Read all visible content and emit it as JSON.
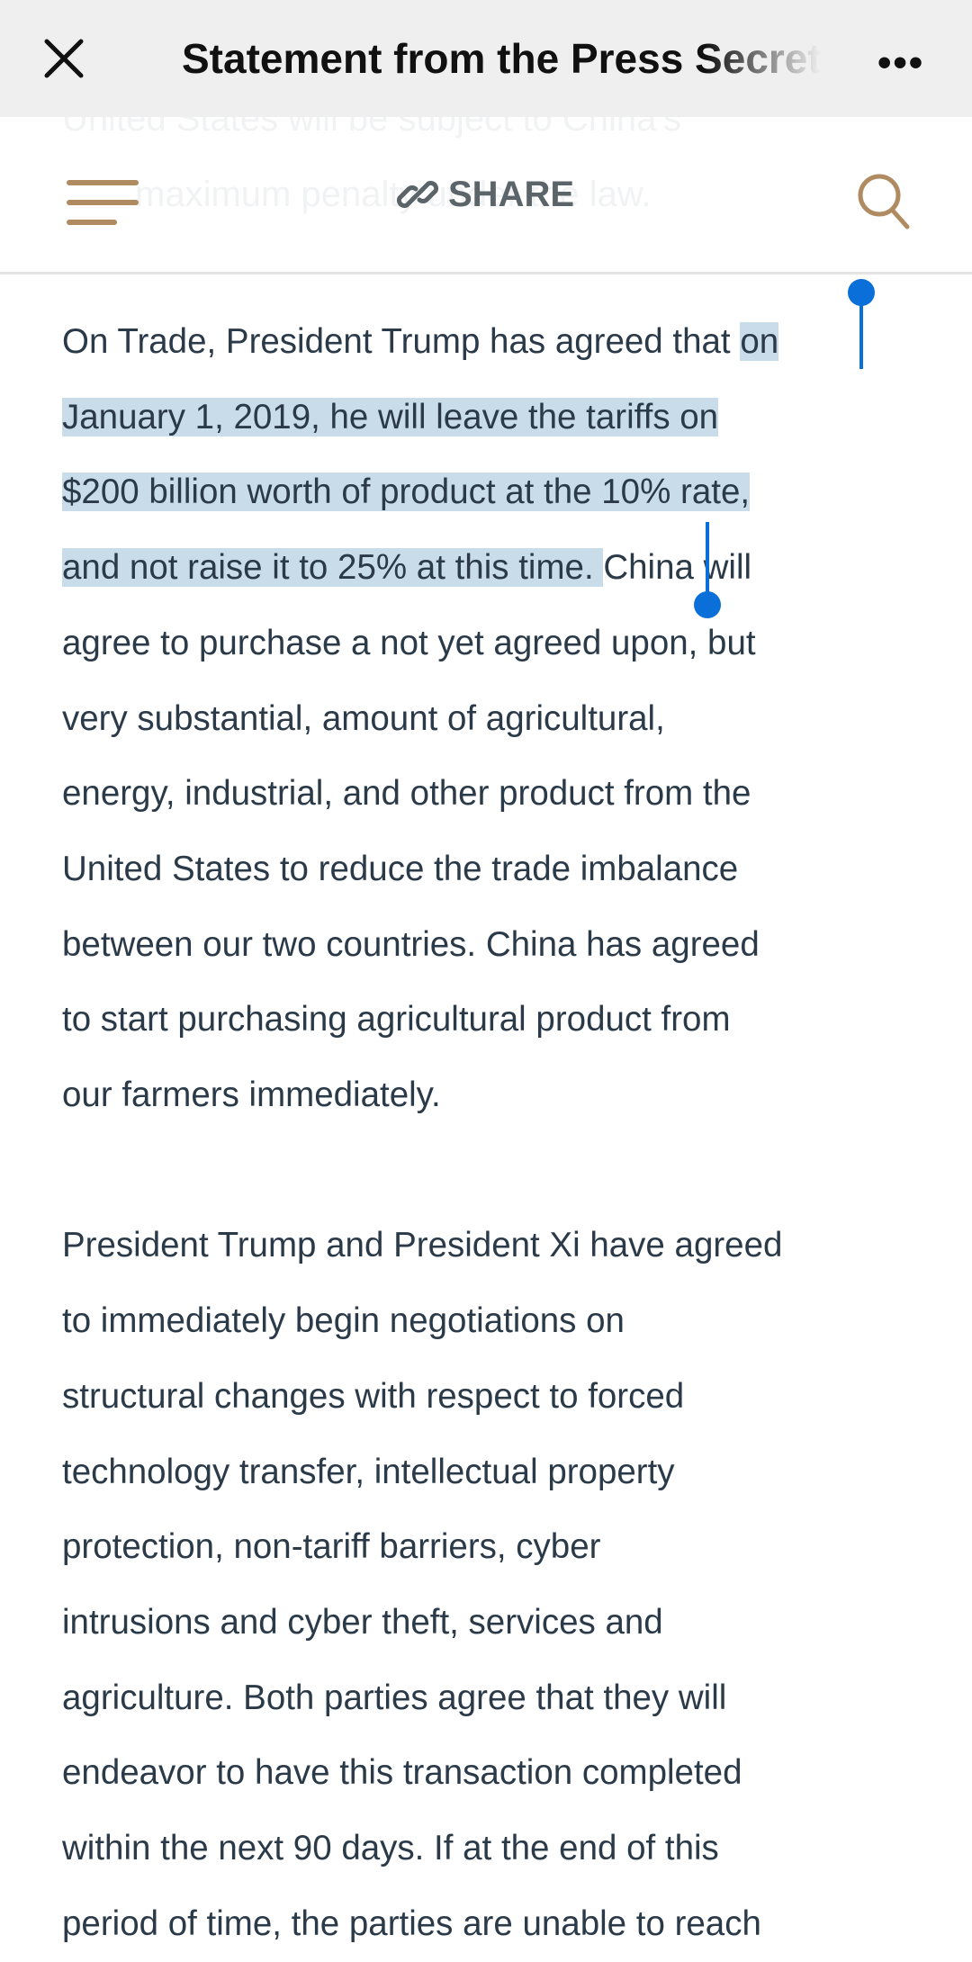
{
  "topbar": {
    "title": "Statement from the Press Secretary",
    "close_icon": "close-icon",
    "more_icon": "more-horizontal-icon",
    "more_label": "•••"
  },
  "toolbar": {
    "menu_icon": "hamburger-menu-icon",
    "share_label": "SHARE",
    "share_icon": "link-icon",
    "search_icon": "search-icon",
    "accent_color": "#b08a60",
    "ghost_lines": [
      "United States will be subject to China's",
      "maximum penalty under the law."
    ]
  },
  "article": {
    "selection_color": "#c9dcea",
    "handle_color": "#0a6fd8",
    "paragraph1": [
      {
        "before": "On Trade, President Trump has agreed that ",
        "selected": "on",
        "after": ""
      },
      {
        "before": "",
        "selected": "January 1, 2019, he will leave the tariffs on",
        "after": ""
      },
      {
        "before": "",
        "selected": "$200 billion worth of product at the 10% rate,",
        "after": ""
      },
      {
        "before": "",
        "selected": "and not raise it to 25% at this time. ",
        "after": "China will"
      },
      {
        "before": "agree to purchase a not yet agreed upon, but",
        "selected": "",
        "after": ""
      },
      {
        "before": "very substantial, amount of agricultural,",
        "selected": "",
        "after": ""
      },
      {
        "before": "energy, industrial, and other product from the",
        "selected": "",
        "after": ""
      },
      {
        "before": "United States to reduce the trade imbalance",
        "selected": "",
        "after": ""
      },
      {
        "before": "between our two countries. China has agreed",
        "selected": "",
        "after": ""
      },
      {
        "before": "to start purchasing agricultural product from",
        "selected": "",
        "after": ""
      },
      {
        "before": "our farmers immediately.",
        "selected": "",
        "after": ""
      }
    ],
    "paragraph2": [
      "President Trump and President Xi have agreed",
      "to immediately begin negotiations on",
      "structural changes with respect to forced",
      "technology transfer, intellectual property",
      "protection, non-tariff barriers, cyber",
      "intrusions and cyber theft, services and",
      "agriculture. Both parties agree that they will",
      "endeavor to have this transaction completed",
      "within the next 90 days. If at the end of this",
      "period of time, the parties are unable to reach"
    ]
  }
}
